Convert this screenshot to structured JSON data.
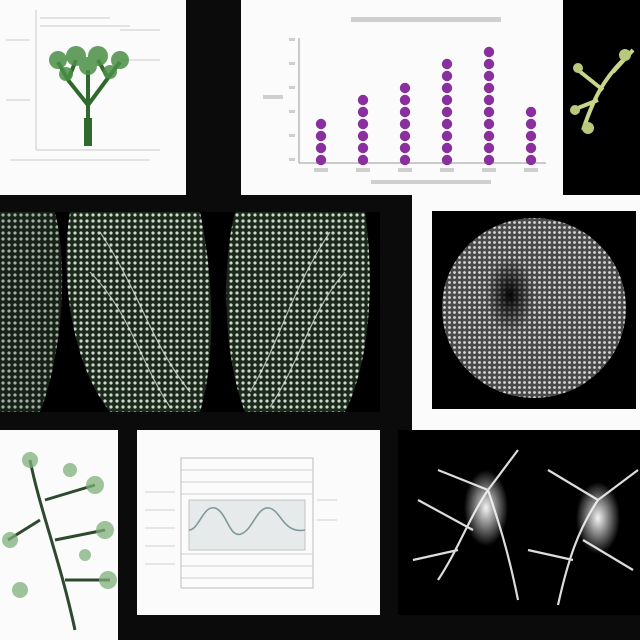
{
  "panels": [
    {
      "name": "tree-diagram-panel",
      "kind": "figure"
    },
    {
      "name": "dot-column-chart-panel",
      "kind": "chart"
    },
    {
      "name": "plant-sprig-panel",
      "kind": "photo"
    },
    {
      "name": "fibrous-lobes-panel",
      "kind": "micrograph"
    },
    {
      "name": "sphere-cell-panel",
      "kind": "micrograph"
    },
    {
      "name": "green-branch-panel",
      "kind": "photo"
    },
    {
      "name": "table-waveform-panel",
      "kind": "document"
    },
    {
      "name": "dendrite-panel",
      "kind": "micrograph"
    }
  ],
  "colors": {
    "accent_purple": "#8a2f9e",
    "plant_green": "#3f7a3a",
    "axis_grey": "#9a9a9a"
  },
  "chart_data": {
    "type": "scatter",
    "title": "",
    "xlabel": "",
    "ylabel": "",
    "categories": [
      "",
      "",
      "",
      "",
      "",
      ""
    ],
    "values": [
      3,
      5,
      6,
      8,
      9,
      4
    ],
    "ylim": [
      0,
      10
    ],
    "grid": false,
    "legend": "none"
  }
}
